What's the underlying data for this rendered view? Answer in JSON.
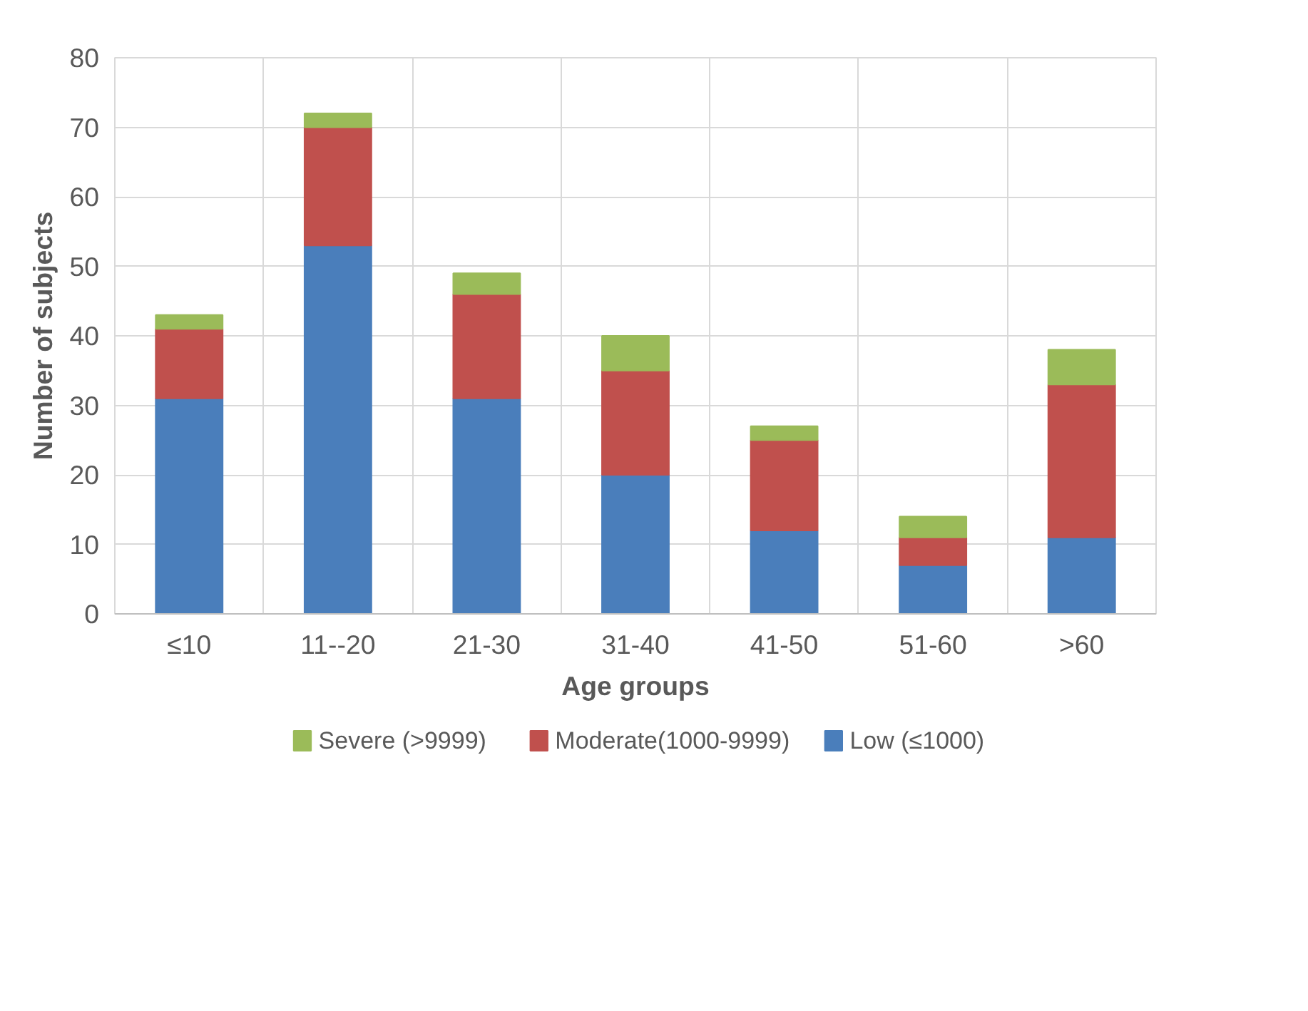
{
  "chart_data": {
    "type": "bar",
    "stacked": true,
    "xlabel": "Age groups",
    "ylabel": "Number of subjects",
    "categories": [
      "≤10",
      "11--20",
      "21-30",
      "31-40",
      "41-50",
      "51-60",
      ">60"
    ],
    "series": [
      {
        "name": "Low (≤1000)",
        "color": "#4a7ebb",
        "values": [
          31,
          53,
          31,
          20,
          12,
          7,
          11
        ]
      },
      {
        "name": "Moderate(1000-9999)",
        "color": "#c0504d",
        "values": [
          10,
          17,
          15,
          15,
          13,
          4,
          22
        ]
      },
      {
        "name": "Severe (>9999)",
        "color": "#9bbb59",
        "values": [
          2,
          2,
          3,
          5,
          2,
          3,
          5
        ]
      }
    ],
    "ylim": [
      0,
      80
    ],
    "yticks": [
      0,
      10,
      20,
      30,
      40,
      50,
      60,
      70,
      80
    ],
    "grid": true,
    "legend": "bottom"
  }
}
